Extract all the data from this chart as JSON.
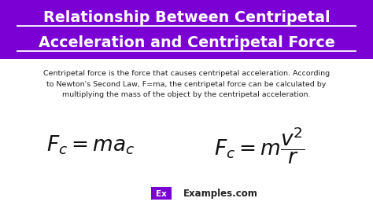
{
  "bg_color": "#ffffff",
  "header_bg": "#7B00D4",
  "header_line1": "Relationship Between Centripetal",
  "header_line2": "Acceleration and Centripetal Force",
  "header_text_color": "#ffffff",
  "body_text": "Centripetal force is the force that causes centripetal acceleration. According\nto Newton's Second Law, F=ma, the centripetal force can be calculated by\nmultiplying the mass of the object by the centripetal acceleration.",
  "body_text_color": "#222222",
  "formula1": "$F_c = ma_c$",
  "formula2": "$F_c = m\\dfrac{v^2}{r}$",
  "formula_color": "#111111",
  "watermark_ex_bg": "#7B00D4",
  "watermark_ex_text": "Ex",
  "watermark_site": "Examples.com",
  "watermark_text_color": "#222222"
}
